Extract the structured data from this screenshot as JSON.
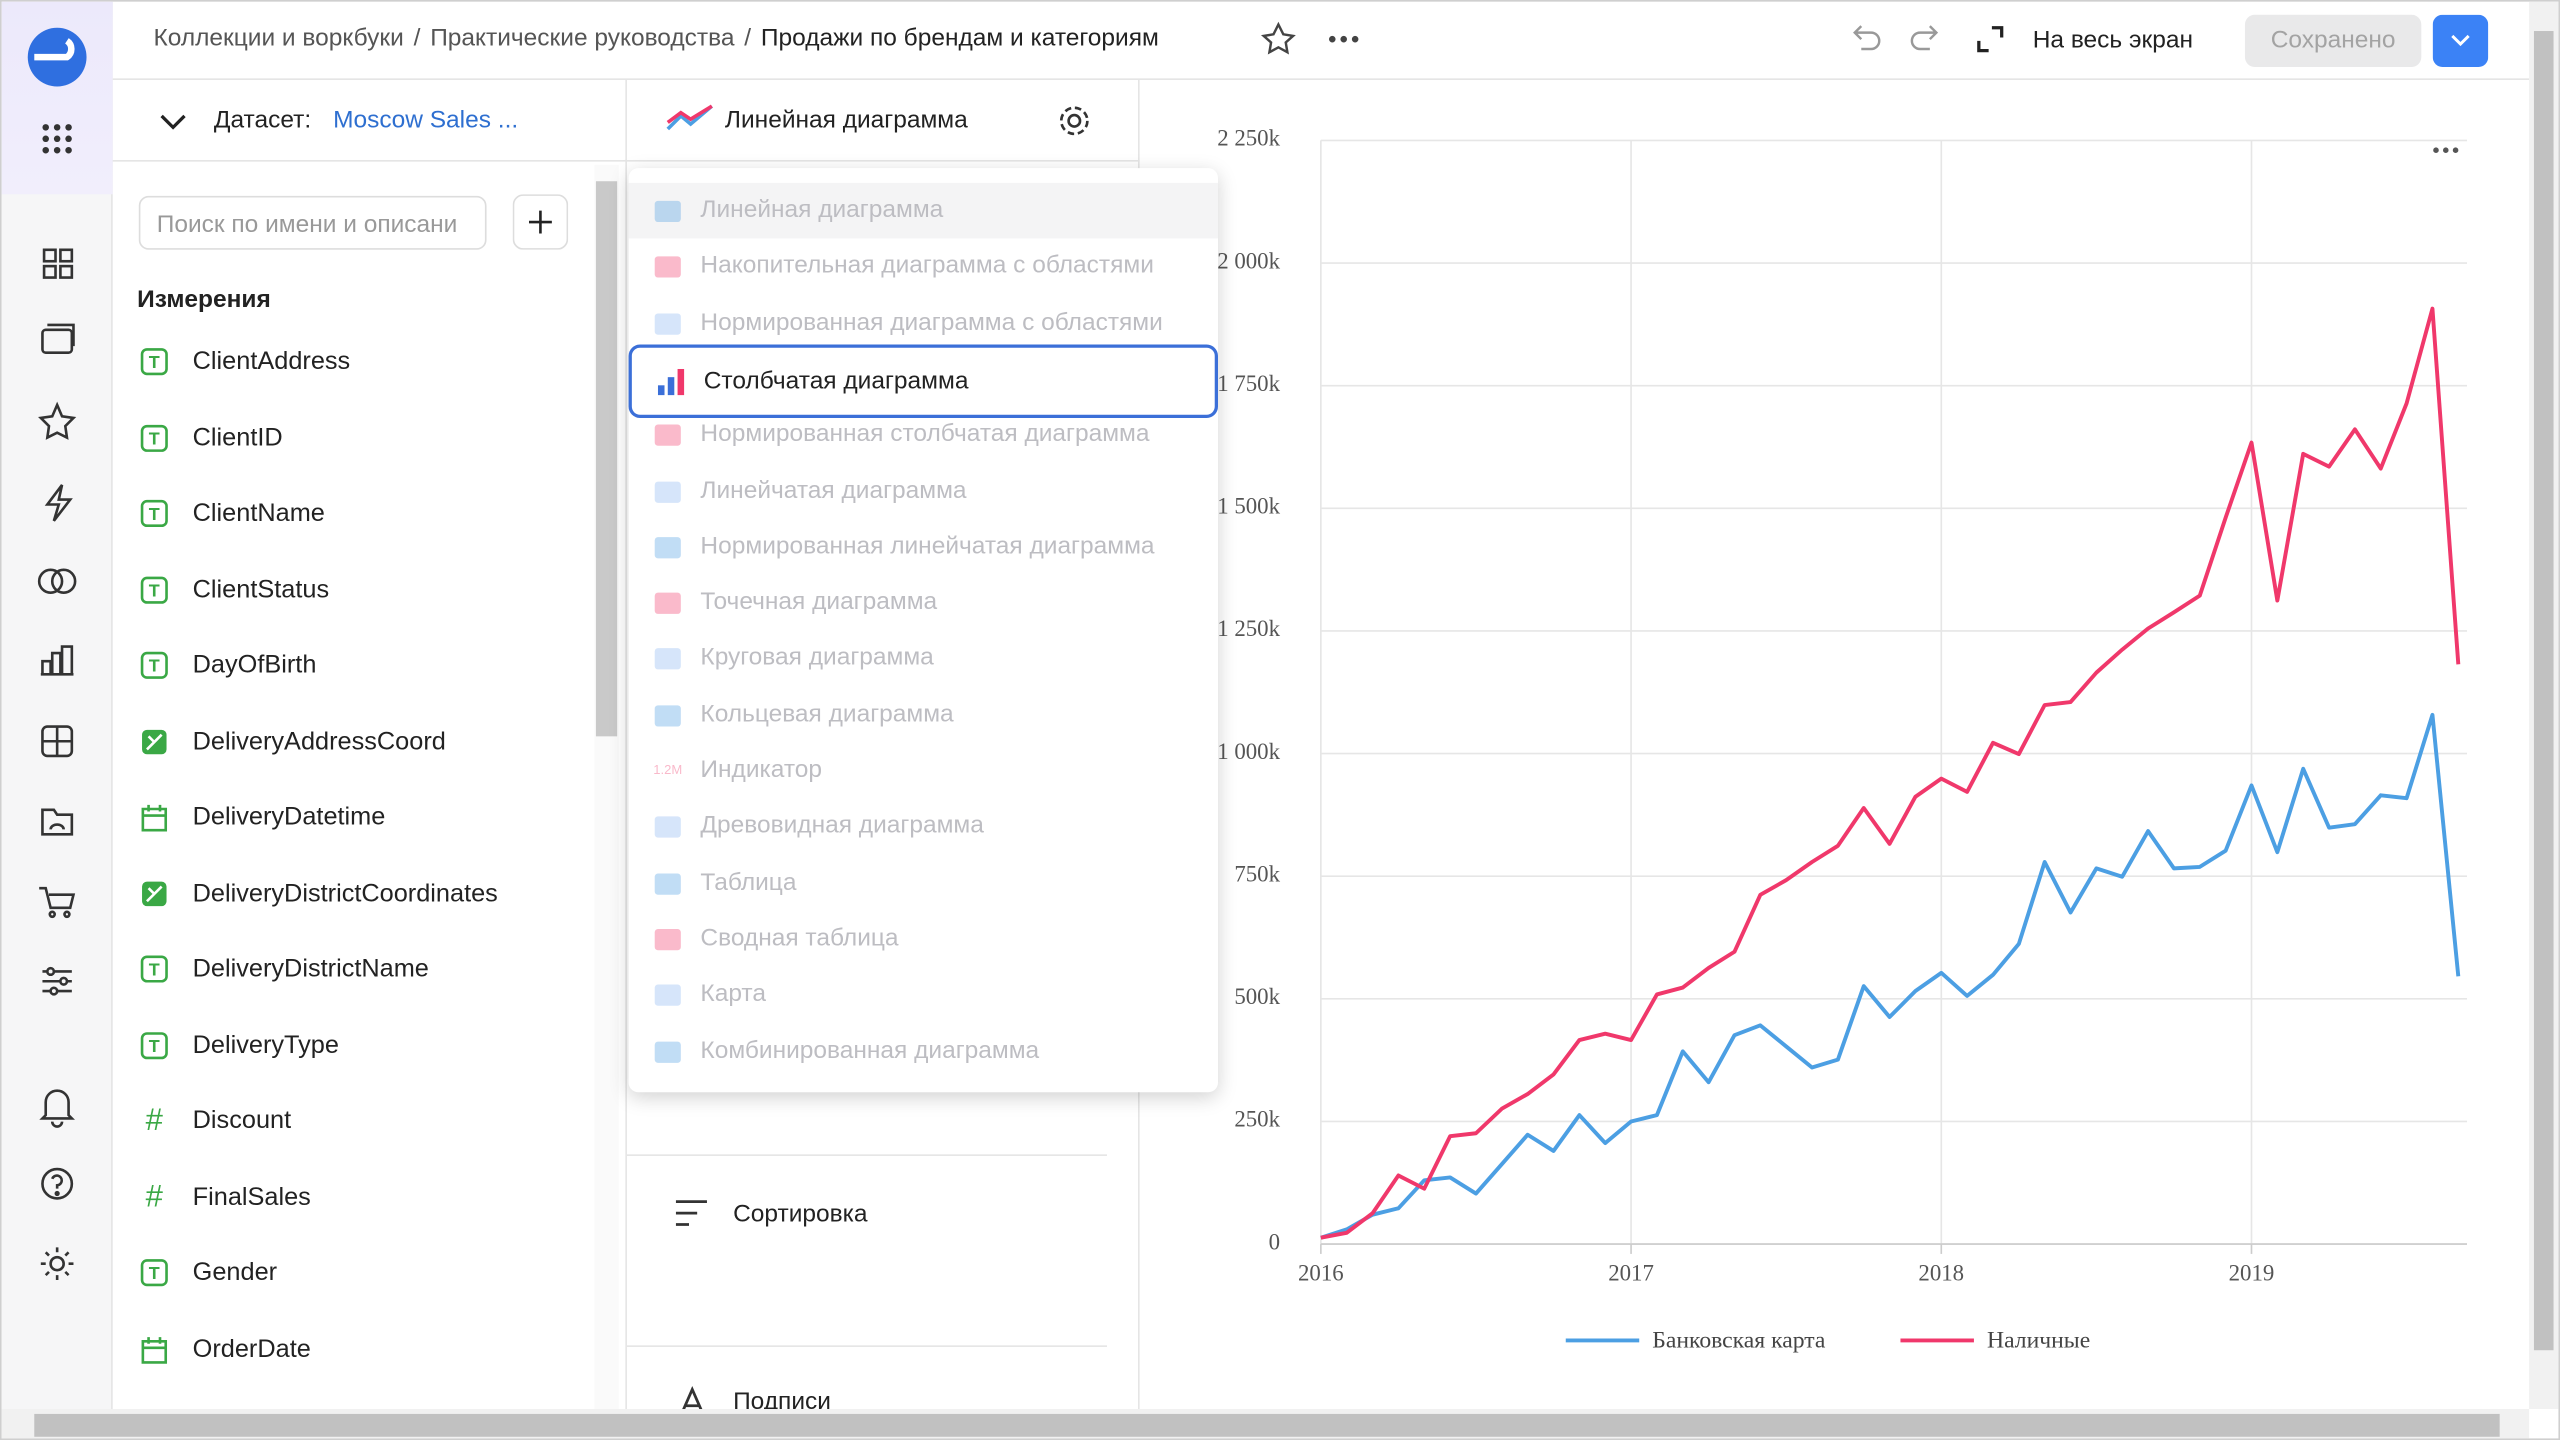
{
  "breadcrumbs": {
    "items": [
      "Коллекции и воркбуки",
      "Практические руководства",
      "Продажи по брендам и категориям"
    ],
    "separator": "/"
  },
  "header": {
    "fullscreen": "На весь экран",
    "save": "Сохранено"
  },
  "dataset": {
    "label": "Датасет:",
    "name": "Moscow Sales ..."
  },
  "search": {
    "placeholder": "Поиск по имени и описани"
  },
  "dimensions": {
    "title": "Измерения",
    "type_icons": {
      "text": "T",
      "number": "#"
    },
    "fields": [
      {
        "name": "ClientAddress",
        "type": "text"
      },
      {
        "name": "ClientID",
        "type": "text"
      },
      {
        "name": "ClientName",
        "type": "text"
      },
      {
        "name": "ClientStatus",
        "type": "text"
      },
      {
        "name": "DayOfBirth",
        "type": "text"
      },
      {
        "name": "DeliveryAddressCoord",
        "type": "geo"
      },
      {
        "name": "DeliveryDatetime",
        "type": "date"
      },
      {
        "name": "DeliveryDistrictCoordinates",
        "type": "geo"
      },
      {
        "name": "DeliveryDistrictName",
        "type": "text"
      },
      {
        "name": "DeliveryType",
        "type": "text"
      },
      {
        "name": "Discount",
        "type": "number"
      },
      {
        "name": "FinalSales",
        "type": "number"
      },
      {
        "name": "Gender",
        "type": "text"
      },
      {
        "name": "OrderDate",
        "type": "date"
      }
    ]
  },
  "visualization": {
    "current": "Линейная диаграмма",
    "selected": 3,
    "indicator_icon": "1.2M",
    "menu": [
      "Линейная диаграмма",
      "Накопительная диаграмма с областями",
      "Нормированная диаграмма с областями",
      "Столбчатая диаграмма",
      "Нормированная столбчатая диаграмма",
      "Линейчатая диаграмма",
      "Нормированная линейчатая диаграмма",
      "Точечная диаграмма",
      "Круговая диаграмма",
      "Кольцевая диаграмма",
      "Индикатор",
      "Древовидная диаграмма",
      "Таблица",
      "Сводная таблица",
      "Карта",
      "Комбинированная диаграмма"
    ]
  },
  "sections": [
    "Сортировка",
    "Подписи"
  ],
  "chart_data": {
    "type": "line",
    "grid": true,
    "legend": "bottom",
    "categories": [
      "2016",
      null,
      null,
      null,
      null,
      null,
      null,
      null,
      null,
      null,
      null,
      null,
      "2017",
      null,
      null,
      null,
      null,
      null,
      null,
      null,
      null,
      null,
      null,
      null,
      "2018",
      null,
      null,
      null,
      null,
      null,
      null,
      null,
      null,
      null,
      null,
      null,
      "2019",
      null,
      null,
      null,
      null,
      null,
      null,
      null,
      null
    ],
    "series": [
      {
        "name": "Банковская карта",
        "color": "#4c9fe3",
        "values": [
          13000,
          30000,
          60000,
          73000,
          130000,
          136000,
          103000,
          163000,
          223000,
          190000,
          263000,
          206000,
          250000,
          263000,
          393000,
          330000,
          426000,
          446000,
          403000,
          360000,
          376000,
          526000,
          463000,
          516000,
          553000,
          506000,
          549000,
          612000,
          779000,
          676000,
          766000,
          749000,
          842000,
          766000,
          769000,
          802000,
          935000,
          799000,
          969000,
          849000,
          856000,
          915000,
          909000,
          1079000,
          546000
        ]
      },
      {
        "name": "Наличные",
        "color": "#f0386b",
        "values": [
          13000,
          23000,
          63000,
          140000,
          113000,
          220000,
          226000,
          276000,
          306000,
          346000,
          416000,
          429000,
          416000,
          509000,
          523000,
          563000,
          596000,
          712000,
          742000,
          779000,
          812000,
          889000,
          816000,
          912000,
          949000,
          922000,
          1022000,
          999000,
          1099000,
          1105000,
          1165000,
          1212000,
          1255000,
          1288000,
          1322000,
          1481000,
          1634000,
          1312000,
          1611000,
          1585000,
          1661000,
          1581000,
          1714000,
          1907000,
          1182000
        ]
      }
    ],
    "ylim": [
      0,
      2250000
    ],
    "yticks": [
      0,
      {
        "value": 250000,
        "label": "250k"
      },
      {
        "value": 500000,
        "label": "500k"
      },
      {
        "value": 750000,
        "label": "750k"
      },
      {
        "value": 1000000,
        "label": "1 000k"
      },
      {
        "value": 1250000,
        "label": "1 250k"
      },
      {
        "value": 1500000,
        "label": "1 500k"
      },
      {
        "value": 1750000,
        "label": "1 750k"
      },
      {
        "value": 2000000,
        "label": "2 000k"
      },
      {
        "value": 2250000,
        "label": "2 250k"
      }
    ]
  }
}
